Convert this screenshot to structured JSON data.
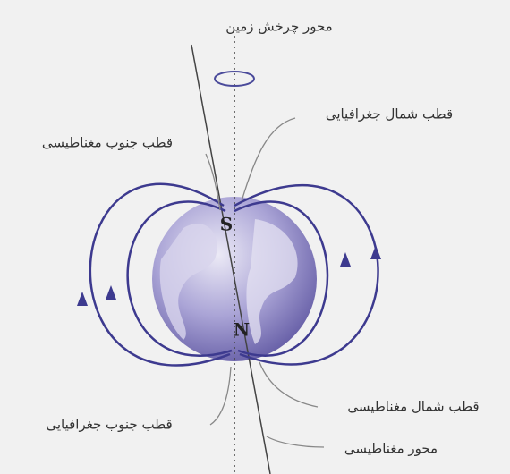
{
  "title": "محور چرخش زمین",
  "labels": {
    "geographic_north": "قطب شمال جغرافیایی",
    "magnetic_south": "قطب جنوب مغناطیسی",
    "magnetic_north": "قطب شمال مغناطیسی",
    "geographic_south": "قطب جنوب جغرافیایی",
    "magnetic_axis": "محور مغناطیسی"
  },
  "poles": {
    "top": "S",
    "bottom": "N"
  }
}
